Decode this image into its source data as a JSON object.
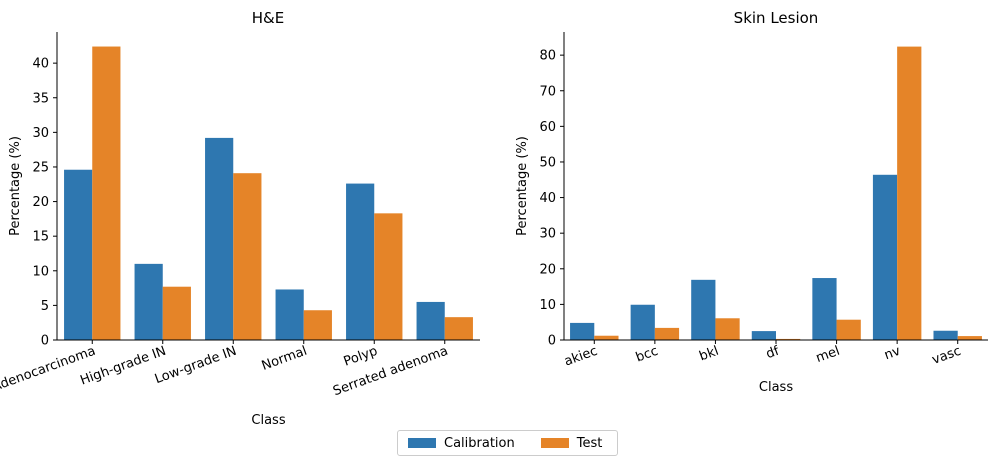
{
  "colors": {
    "calibration": "#2e77b0",
    "test": "#e58428"
  },
  "legend": {
    "calibration_label": "Calibration",
    "test_label": "Test"
  },
  "chart_data": [
    {
      "type": "bar",
      "title": "H&E",
      "xlabel": "Class",
      "ylabel": "Percentage (%)",
      "ylim": [
        0,
        44.5
      ],
      "yticks": [
        0,
        5,
        10,
        15,
        20,
        25,
        30,
        35,
        40
      ],
      "categories": [
        "Adenocarcinoma",
        "High-grade IN",
        "Low-grade IN",
        "Normal",
        "Polyp",
        "Serrated adenoma"
      ],
      "series": [
        {
          "name": "Calibration",
          "values": [
            24.6,
            11.0,
            29.2,
            7.3,
            22.6,
            5.5
          ]
        },
        {
          "name": "Test",
          "values": [
            42.4,
            7.7,
            24.1,
            4.3,
            18.3,
            3.3
          ]
        }
      ]
    },
    {
      "type": "bar",
      "title": "Skin Lesion",
      "xlabel": "Class",
      "ylabel": "Percentage (%)",
      "ylim": [
        0,
        86.5
      ],
      "yticks": [
        0,
        10,
        20,
        30,
        40,
        50,
        60,
        70,
        80
      ],
      "categories": [
        "akiec",
        "bcc",
        "bkl",
        "df",
        "mel",
        "nv",
        "vasc"
      ],
      "series": [
        {
          "name": "Calibration",
          "values": [
            4.8,
            9.9,
            16.9,
            2.5,
            17.4,
            46.4,
            2.6
          ]
        },
        {
          "name": "Test",
          "values": [
            1.2,
            3.4,
            6.1,
            0.3,
            5.7,
            82.4,
            1.1
          ]
        }
      ]
    }
  ]
}
